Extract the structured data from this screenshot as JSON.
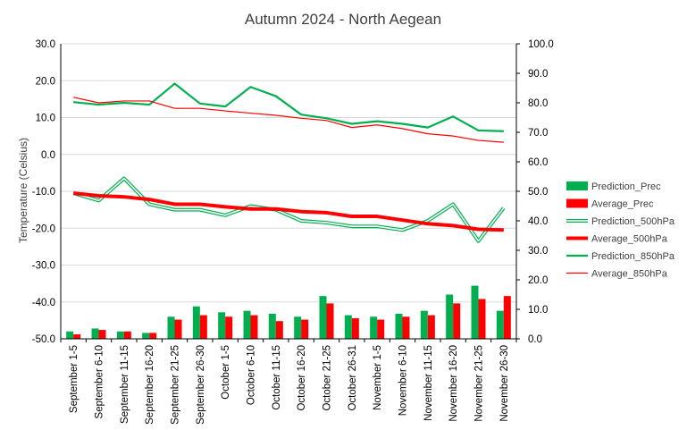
{
  "chart_data": {
    "type": "bar+line",
    "title": "Autumn 2024 - North Aegean",
    "ylabel": "Temperature (Celsius)",
    "y2label": "",
    "xlabel": "",
    "ylim": [
      -50,
      30
    ],
    "y2lim": [
      0,
      100
    ],
    "yticks": [
      "30.0",
      "20.0",
      "10.0",
      "0.0",
      "-10.0",
      "-20.0",
      "-30.0",
      "-40.0",
      "-50.0"
    ],
    "y2ticks": [
      "100.0",
      "90.0",
      "80.0",
      "70.0",
      "60.0",
      "50.0",
      "40.0",
      "30.0",
      "20.0",
      "10.0",
      "0.0"
    ],
    "grid": "horizontal-left-axis",
    "legend_position": "right",
    "categories": [
      "September 1-5",
      "September 6-10",
      "September 11-15",
      "September 16-20",
      "September 21-25",
      "September 26-30",
      "October 1-5",
      "October 6-10",
      "October 11-15",
      "October 16-20",
      "October 21-25",
      "October 26-31",
      "November 1-5",
      "November 6-10",
      "November 11-15",
      "November 16-20",
      "November 21-25",
      "November 26-30"
    ],
    "series": [
      {
        "name": "Prediction_Prec",
        "kind": "bar",
        "axis": "right",
        "color": "#00B050",
        "values": [
          2.5,
          3.5,
          2.5,
          2,
          7.5,
          11,
          9,
          9.5,
          8.5,
          7.5,
          14.5,
          8,
          7.5,
          8.5,
          9.5,
          15,
          18,
          9.5
        ]
      },
      {
        "name": "Average_Prec",
        "kind": "bar",
        "axis": "right",
        "color": "#FF0000",
        "values": [
          1.5,
          3,
          2.5,
          2,
          6.5,
          8,
          7.5,
          8,
          6,
          6.5,
          12,
          7,
          6.5,
          7.5,
          8,
          12,
          13.5,
          14.5
        ]
      },
      {
        "name": "Prediction_500hPa",
        "kind": "line-double",
        "axis": "left",
        "color": "#00B050",
        "values": [
          -10.5,
          -12.5,
          -6.5,
          -13.5,
          -15,
          -15,
          -16.5,
          -14,
          -15,
          -18,
          -18.5,
          -19.5,
          -19.5,
          -20.5,
          -18,
          -13.5,
          -23.5,
          -14.5
        ]
      },
      {
        "name": "Average_500hPa",
        "kind": "line-thick",
        "axis": "left",
        "color": "#FF0000",
        "values": [
          -10.5,
          -11.2,
          -11.5,
          -12.2,
          -13.5,
          -13.5,
          -14.2,
          -14.8,
          -14.8,
          -15.5,
          -15.8,
          -16.8,
          -16.8,
          -17.8,
          -18.8,
          -19.3,
          -20.3,
          -20.5
        ]
      },
      {
        "name": "Prediction_850hPa",
        "kind": "line",
        "axis": "left",
        "color": "#00B050",
        "values": [
          14.2,
          13.5,
          14,
          13.5,
          19.2,
          13.8,
          13,
          18.3,
          15.8,
          10.8,
          9.8,
          8.3,
          9,
          8.3,
          7.3,
          10.3,
          6.5,
          6.3
        ]
      },
      {
        "name": "Average_850hPa",
        "kind": "line-thin",
        "axis": "left",
        "color": "#FF0000",
        "values": [
          15.5,
          14,
          14.5,
          14.5,
          12.5,
          12.5,
          11.8,
          11.2,
          10.6,
          9.8,
          9.2,
          7.3,
          8,
          7,
          5.6,
          5,
          3.8,
          3.3
        ]
      }
    ]
  }
}
